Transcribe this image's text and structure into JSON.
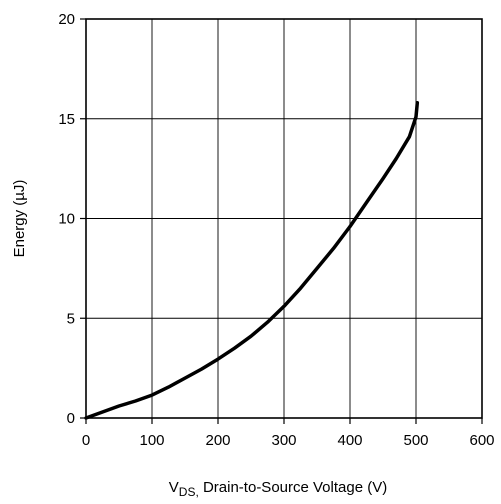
{
  "chart_data": {
    "type": "line",
    "title": "",
    "xlabel": {
      "main": "V",
      "subscript": "DS,",
      "rest": " Drain-to-Source Voltage (V)"
    },
    "ylabel": "Energy (µJ)",
    "xlim": [
      0,
      600
    ],
    "ylim": [
      0,
      20
    ],
    "xticks": [
      "0",
      "100",
      "200",
      "300",
      "400",
      "500",
      "600"
    ],
    "yticks": [
      "0",
      "5",
      "10",
      "15",
      "20"
    ],
    "grid": true,
    "legend": "none",
    "series": [
      {
        "color": "#000000",
        "x": [
          0,
          25,
          50,
          75,
          100,
          125,
          150,
          175,
          200,
          225,
          250,
          275,
          300,
          325,
          350,
          375,
          400,
          425,
          450,
          470,
          490,
          500,
          502
        ],
        "y": [
          0,
          0.3,
          0.6,
          0.85,
          1.15,
          1.55,
          2.0,
          2.45,
          2.95,
          3.5,
          4.1,
          4.8,
          5.6,
          6.5,
          7.5,
          8.5,
          9.6,
          10.8,
          12.0,
          13.0,
          14.1,
          15.1,
          15.8
        ]
      }
    ]
  }
}
